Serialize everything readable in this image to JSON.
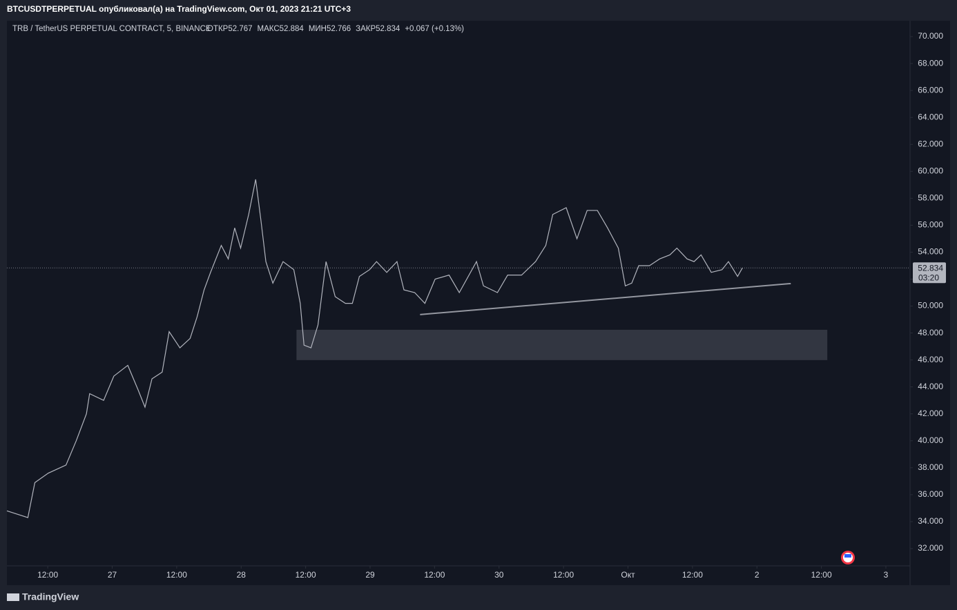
{
  "header": {
    "title": "BTCUSDTPERPETUAL опубликовал(а) на TradingView.com, Окт 01, 2023 21:21 UTC+3"
  },
  "footer": {
    "brand": "TradingView"
  },
  "chart_data": {
    "type": "line",
    "symbol": "TRB / TetherUS PERPETUAL CONTRACT, 5, BINANCE",
    "ohlc": [
      "ОТКР52.767",
      "МАКС52.884",
      "МИН52.766",
      "ЗАКР52.834",
      "+0.067 (+0.13%)"
    ],
    "last_price": 52.834,
    "countdown": "03:20",
    "x": [
      4.4,
      8.3,
      9.6,
      12.1,
      15.4,
      17.3,
      19.2,
      19.8,
      22.4,
      24.3,
      26.9,
      28.8,
      30.1,
      31.4,
      33.3,
      34.6,
      36.6,
      38.5,
      39.8,
      41.1,
      42.3,
      44.3,
      45.6,
      46.8,
      47.9,
      49.4,
      50.7,
      51.7,
      52.6,
      53.9,
      55.8,
      57.8,
      59.0,
      59.7,
      61.0,
      62.3,
      63.8,
      65.5,
      67.4,
      68.7,
      70.0,
      71.9,
      73.2,
      75.1,
      77.0,
      78.3,
      80.3,
      82.2,
      84.1,
      86.7,
      88.6,
      91.8,
      93.1,
      95.7,
      97.6,
      100.2,
      102.8,
      104.7,
      106.0,
      108.5,
      110.5,
      112.4,
      114.3,
      116.2,
      118.2,
      119.5,
      120.7,
      122.0,
      124.0,
      125.9,
      127.8,
      129.1,
      131.0,
      132.3,
      133.6,
      135.5,
      137.5,
      138.7,
      140.4,
      141.3
    ],
    "series": [
      {
        "color": "#b2b5be",
        "values": [
          34.8,
          34.3,
          36.9,
          37.6,
          38.2,
          40,
          42,
          43.5,
          43,
          44.8,
          45.6,
          43.8,
          42.5,
          44.6,
          45.1,
          48.1,
          46.9,
          47.6,
          49.2,
          51.2,
          52.5,
          54.5,
          53.5,
          55.8,
          54.3,
          56.8,
          59.4,
          56.3,
          53.3,
          51.7,
          53.3,
          52.7,
          50.2,
          47.1,
          46.9,
          48.6,
          53.3,
          50.7,
          50.2,
          50.2,
          52.2,
          52.7,
          53.3,
          52.5,
          53.3,
          51.2,
          51,
          50.2,
          52,
          52.3,
          51,
          53.3,
          51.5,
          51,
          52.3,
          52.3,
          53.3,
          54.5,
          56.8,
          57.3,
          55,
          57.1,
          57.1,
          55.8,
          54.3,
          51.5,
          51.7,
          53,
          53,
          53.5,
          53.8,
          54.3,
          53.5,
          53.3,
          53.8,
          52.5,
          52.7,
          53.3,
          52.2,
          52.834
        ]
      }
    ],
    "trendline": {
      "x": [
        81.3,
        150.3
      ],
      "y": [
        49.37,
        51.67
      ],
      "color": "#9598a1"
    },
    "zone": {
      "x": [
        58.3,
        157.1
      ],
      "y": [
        45.99,
        48.24
      ],
      "color": "#363a45"
    },
    "xlim": [
      4.4,
      172.5
    ],
    "xticks": [
      {
        "value": 12,
        "label": "12:00"
      },
      {
        "value": 24,
        "label": "27"
      },
      {
        "value": 36,
        "label": "12:00"
      },
      {
        "value": 48,
        "label": "28"
      },
      {
        "value": 60,
        "label": "12:00"
      },
      {
        "value": 72,
        "label": "29"
      },
      {
        "value": 84,
        "label": "12:00"
      },
      {
        "value": 96,
        "label": "30"
      },
      {
        "value": 108,
        "label": "12:00"
      },
      {
        "value": 120,
        "label": "Окт"
      },
      {
        "value": 132,
        "label": "12:00"
      },
      {
        "value": 144,
        "label": "2"
      },
      {
        "value": 156,
        "label": "12:00"
      },
      {
        "value": 168,
        "label": "3"
      }
    ],
    "ylim": [
      30.72,
      71.18
    ],
    "yticks": [
      {
        "value": 32,
        "label": "32.000"
      },
      {
        "value": 34,
        "label": "34.000"
      },
      {
        "value": 36,
        "label": "36.000"
      },
      {
        "value": 38,
        "label": "38.000"
      },
      {
        "value": 40,
        "label": "40.000"
      },
      {
        "value": 42,
        "label": "42.000"
      },
      {
        "value": 44,
        "label": "44.000"
      },
      {
        "value": 46,
        "label": "46.000"
      },
      {
        "value": 48,
        "label": "48.000"
      },
      {
        "value": 50,
        "label": "50.000"
      },
      {
        "value": 52,
        "label": "52.000"
      },
      {
        "value": 54,
        "label": "54.000"
      },
      {
        "value": 56,
        "label": "56.000"
      },
      {
        "value": 58,
        "label": "58.000"
      },
      {
        "value": 60,
        "label": "60.000"
      },
      {
        "value": 62,
        "label": "62.000"
      },
      {
        "value": 64,
        "label": "64.000"
      },
      {
        "value": 66,
        "label": "66.000"
      },
      {
        "value": 68,
        "label": "68.000"
      },
      {
        "value": 70,
        "label": "70.000"
      }
    ]
  }
}
